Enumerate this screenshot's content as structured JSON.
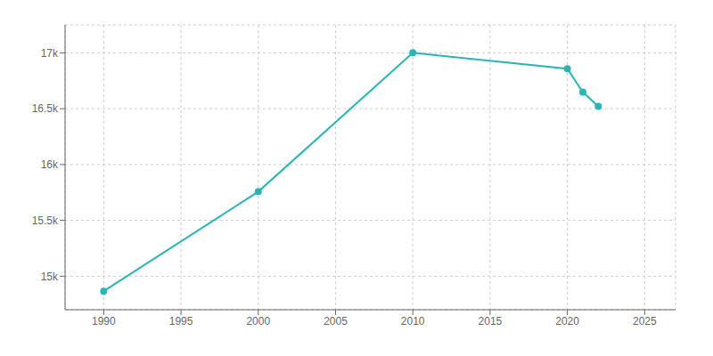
{
  "chart_data": {
    "type": "line",
    "x": [
      1990,
      2000,
      2010,
      2020,
      2021,
      2022
    ],
    "values": [
      14866,
      15757,
      17000,
      16858,
      16648,
      16520
    ],
    "color": "#2ab5b5",
    "marker": "circle",
    "xlim": [
      1987.5,
      2027
    ],
    "ylim": [
      14700,
      17250
    ],
    "xticks": [
      1990,
      1995,
      2000,
      2005,
      2010,
      2015,
      2020,
      2025
    ],
    "yticks": [
      {
        "value": 15000,
        "label": "15k"
      },
      {
        "value": 15500,
        "label": "15.5k"
      },
      {
        "value": 16000,
        "label": "16k"
      },
      {
        "value": 16500,
        "label": "16.5k"
      },
      {
        "value": 17000,
        "label": "17k"
      }
    ],
    "grid": true
  }
}
